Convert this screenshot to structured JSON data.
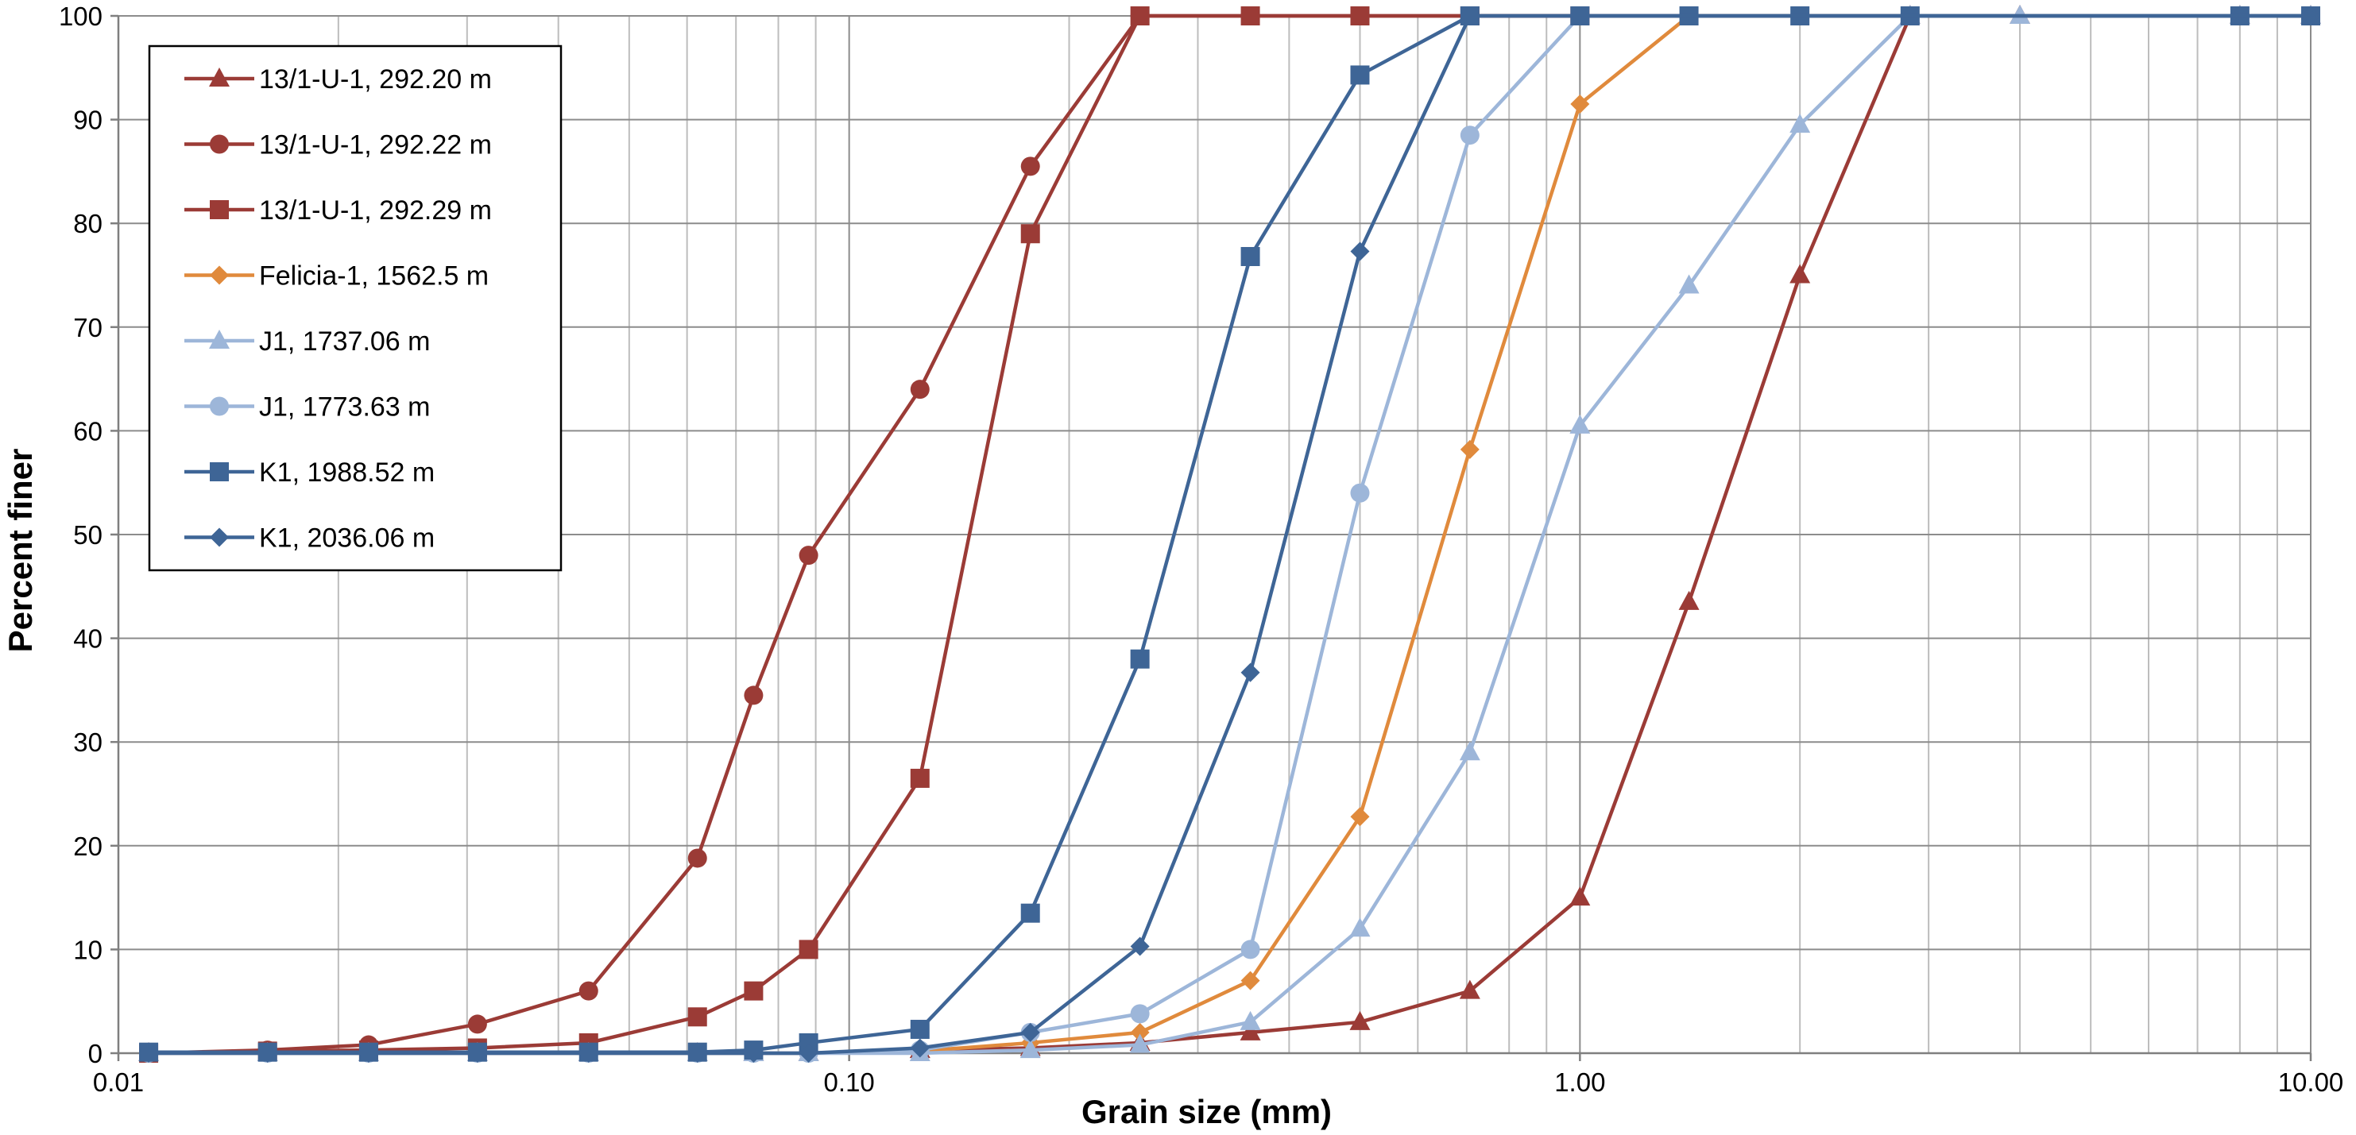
{
  "chart_data": {
    "type": "line",
    "title": "",
    "xlabel": "Grain size (mm)",
    "ylabel": "Percent finer",
    "x_scale": "log",
    "xlim": [
      0.01,
      10
    ],
    "ylim": [
      0,
      100
    ],
    "grid": true,
    "legend_position": "top-left",
    "x_tick_labels": [
      {
        "value": 0.01,
        "label": "0.01"
      },
      {
        "value": 0.1,
        "label": "0.10"
      },
      {
        "value": 1,
        "label": "1.00"
      },
      {
        "value": 10,
        "label": "10.00"
      }
    ],
    "y_tick_labels": [
      "0",
      "10",
      "20",
      "30",
      "40",
      "50",
      "60",
      "70",
      "80",
      "90",
      "100"
    ],
    "series": [
      {
        "name": "13/1-U-1, 292.20 m",
        "color": "#9b3b36",
        "marker": "triangle",
        "x": [
          0.011,
          0.016,
          0.022,
          0.031,
          0.044,
          0.062,
          0.074,
          0.088,
          0.125,
          0.177,
          0.25,
          0.354,
          0.5,
          0.707,
          1.0,
          1.41,
          2.0,
          2.83,
          4.0,
          8.0,
          10.0
        ],
        "y": [
          0,
          0,
          0,
          0,
          0,
          0,
          0,
          0,
          0.3,
          0.5,
          1,
          2,
          3,
          6,
          15,
          43.5,
          75,
          100,
          100,
          100,
          100
        ]
      },
      {
        "name": "13/1-U-1, 292.22 m",
        "color": "#9b3b36",
        "marker": "circle",
        "x": [
          0.011,
          0.016,
          0.022,
          0.031,
          0.044,
          0.062,
          0.074,
          0.088,
          0.125,
          0.177,
          0.25,
          0.354,
          0.5,
          0.707,
          1.0,
          10.0
        ],
        "y": [
          0,
          0.3,
          0.8,
          2.8,
          6,
          18.8,
          34.5,
          48,
          64,
          85.5,
          100,
          100,
          100,
          100,
          100,
          100
        ]
      },
      {
        "name": "13/1-U-1, 292.29 m",
        "color": "#9b3b36",
        "marker": "square",
        "x": [
          0.011,
          0.016,
          0.022,
          0.031,
          0.044,
          0.062,
          0.074,
          0.088,
          0.125,
          0.177,
          0.25,
          0.354,
          0.5,
          0.707,
          1.0,
          10.0
        ],
        "y": [
          0,
          0.2,
          0.3,
          0.5,
          1,
          3.5,
          6,
          10,
          26.5,
          79,
          100,
          100,
          100,
          100,
          100,
          100
        ]
      },
      {
        "name": "Felicia-1, 1562.5 m",
        "color": "#e08a3c",
        "marker": "diamond",
        "x": [
          0.011,
          0.016,
          0.022,
          0.031,
          0.044,
          0.062,
          0.074,
          0.088,
          0.125,
          0.177,
          0.25,
          0.354,
          0.5,
          0.707,
          1.0,
          1.41,
          2.0,
          10.0
        ],
        "y": [
          0,
          0,
          0,
          0,
          0,
          0,
          0,
          0,
          0.2,
          1,
          2,
          7,
          22.8,
          58.2,
          91.5,
          100,
          100,
          100
        ]
      },
      {
        "name": "J1, 1737.06 m",
        "color": "#9db6d9",
        "marker": "triangle",
        "x": [
          0.011,
          0.016,
          0.022,
          0.031,
          0.044,
          0.062,
          0.074,
          0.088,
          0.125,
          0.177,
          0.25,
          0.354,
          0.5,
          0.707,
          1.0,
          1.41,
          2.0,
          2.83,
          4.0,
          8.0,
          10.0
        ],
        "y": [
          0,
          0,
          0,
          0,
          0,
          0,
          0,
          0,
          0,
          0.3,
          0.8,
          3,
          12,
          29,
          60.5,
          74,
          89.5,
          100,
          100,
          100,
          100
        ]
      },
      {
        "name": "J1, 1773.63 m",
        "color": "#9db6d9",
        "marker": "circle",
        "x": [
          0.011,
          0.016,
          0.022,
          0.031,
          0.044,
          0.062,
          0.074,
          0.088,
          0.125,
          0.177,
          0.25,
          0.354,
          0.5,
          0.707,
          1.0,
          10.0
        ],
        "y": [
          0,
          0,
          0,
          0,
          0,
          0,
          0,
          0,
          0.3,
          2,
          3.8,
          10,
          54,
          88.5,
          100,
          100
        ]
      },
      {
        "name": "K1, 1988.52 m",
        "color": "#3e6596",
        "marker": "square",
        "x": [
          0.011,
          0.016,
          0.022,
          0.031,
          0.044,
          0.062,
          0.074,
          0.088,
          0.125,
          0.177,
          0.25,
          0.354,
          0.5,
          0.707,
          1.0,
          1.41,
          2.0,
          2.83,
          8.0,
          10.0
        ],
        "y": [
          0.1,
          0.1,
          0.1,
          0.1,
          0.1,
          0.1,
          0.3,
          1,
          2.3,
          13.5,
          38,
          76.8,
          94.3,
          100,
          100,
          100,
          100,
          100,
          100,
          100
        ]
      },
      {
        "name": "K1, 2036.06 m",
        "color": "#3e6596",
        "marker": "diamond",
        "x": [
          0.011,
          0.016,
          0.022,
          0.031,
          0.044,
          0.062,
          0.074,
          0.088,
          0.125,
          0.177,
          0.25,
          0.354,
          0.5,
          0.707,
          1.0,
          10.0
        ],
        "y": [
          0,
          0,
          0,
          0,
          0,
          0,
          0,
          0,
          0.5,
          2,
          10.3,
          36.7,
          77.3,
          100,
          100,
          100
        ]
      }
    ]
  }
}
